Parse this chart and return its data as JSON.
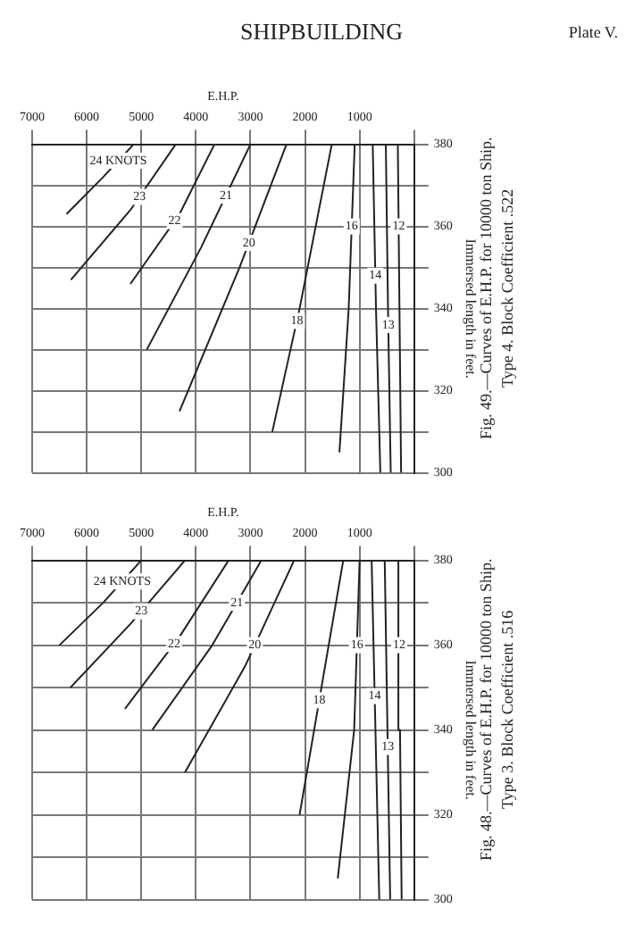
{
  "chart_data": [
    {
      "type": "other",
      "title": "SHIPBUILDING",
      "annotations": [
        "Plate V."
      ]
    },
    {
      "type": "line",
      "xlabel": "E.H.P.",
      "ylabel": "Immersed length in feet.",
      "annotations": [
        "Fig. 49.—Curves of E.H.P. for 10000 ton Ship.",
        "Type 4. Block Coefficient .522"
      ],
      "ylim": [
        300,
        380
      ],
      "yticks": [
        300,
        {
          "value": 310,
          "label": null
        },
        320,
        {
          "value": 330,
          "label": null
        },
        340,
        {
          "value": 350,
          "label": null
        },
        360,
        {
          "value": 370,
          "label": null
        },
        380
      ],
      "xlim": [
        7000,
        0
      ],
      "xticks": [
        {
          "value": 0,
          "label": null
        },
        1000,
        2000,
        3000,
        4000,
        5000,
        6000,
        7000
      ],
      "grid": true,
      "legend": false,
      "marker": "none",
      "line_style": "solid",
      "series": [
        {
          "name": "24 KNOTS",
          "color": "#222222",
          "values": [
            363,
            372,
            380
          ],
          "x": [
            6370,
            5700,
            5140
          ]
        },
        {
          "name": "23",
          "color": "#222222",
          "values": [
            347,
            364,
            380
          ],
          "x": [
            6290,
            5200,
            4370
          ]
        },
        {
          "name": "22",
          "color": "#222222",
          "values": [
            346,
            363,
            380
          ],
          "x": [
            5200,
            4300,
            3660
          ]
        },
        {
          "name": "21",
          "color": "#222222",
          "values": [
            330,
            355,
            380
          ],
          "x": [
            4900,
            3900,
            3000
          ]
        },
        {
          "name": "20",
          "color": "#222222",
          "values": [
            315,
            350,
            380
          ],
          "x": [
            4300,
            3200,
            2340
          ]
        },
        {
          "name": "18",
          "color": "#222222",
          "values": [
            310,
            340,
            380
          ],
          "x": [
            2600,
            2100,
            1510
          ]
        },
        {
          "name": "16",
          "color": "#222222",
          "values": [
            305,
            340,
            380
          ],
          "x": [
            1370,
            1200,
            1090
          ]
        },
        {
          "name": "14",
          "color": "#222222",
          "values": [
            300,
            340,
            380
          ],
          "x": [
            620,
            700,
            760
          ]
        },
        {
          "name": "13",
          "color": "#222222",
          "values": [
            300,
            340,
            380
          ],
          "x": [
            430,
            480,
            520
          ]
        },
        {
          "name": "12",
          "color": "#222222",
          "values": [
            300,
            340,
            380
          ],
          "x": [
            240,
            270,
            300
          ]
        }
      ]
    },
    {
      "type": "line",
      "xlabel": "E.H.P.",
      "ylabel": "Immersed length in feet.",
      "annotations": [
        "Fig. 48.—Curves of E.H.P. for 10000 ton Ship.",
        "Type 3. Block Coefficient .516"
      ],
      "ylim": [
        300,
        380
      ],
      "yticks": [
        300,
        {
          "value": 310,
          "label": null
        },
        320,
        {
          "value": 330,
          "label": null
        },
        340,
        {
          "value": 350,
          "label": null
        },
        360,
        {
          "value": 370,
          "label": null
        },
        380
      ],
      "xlim": [
        7000,
        0
      ],
      "xticks": [
        {
          "value": 0,
          "label": null
        },
        1000,
        2000,
        3000,
        4000,
        5000,
        6000,
        7000
      ],
      "grid": true,
      "legend": false,
      "marker": "none",
      "line_style": "solid",
      "series": [
        {
          "name": "24 KNOTS",
          "color": "#222222",
          "values": [
            360,
            370,
            380
          ],
          "x": [
            6500,
            5700,
            5000
          ]
        },
        {
          "name": "23",
          "color": "#222222",
          "values": [
            350,
            365,
            380
          ],
          "x": [
            6300,
            5200,
            4200
          ]
        },
        {
          "name": "22",
          "color": "#222222",
          "values": [
            345,
            362,
            380
          ],
          "x": [
            5300,
            4300,
            3400
          ]
        },
        {
          "name": "21",
          "color": "#222222",
          "values": [
            340,
            360,
            380
          ],
          "x": [
            4800,
            3700,
            2800
          ]
        },
        {
          "name": "20",
          "color": "#222222",
          "values": [
            330,
            355,
            380
          ],
          "x": [
            4200,
            3100,
            2200
          ]
        },
        {
          "name": "18",
          "color": "#222222",
          "values": [
            320,
            350,
            380
          ],
          "x": [
            2100,
            1700,
            1300
          ]
        },
        {
          "name": "16",
          "color": "#222222",
          "values": [
            305,
            340,
            380
          ],
          "x": [
            1400,
            1100,
            1000
          ]
        },
        {
          "name": "14",
          "color": "#222222",
          "values": [
            300,
            340,
            380
          ],
          "x": [
            640,
            710,
            780
          ]
        },
        {
          "name": "13",
          "color": "#222222",
          "values": [
            300,
            340,
            380
          ],
          "x": [
            440,
            490,
            540
          ]
        },
        {
          "name": "12",
          "color": "#222222",
          "values": [
            300,
            340,
            380
          ],
          "x": [
            230,
            260,
            290
          ]
        }
      ]
    }
  ]
}
